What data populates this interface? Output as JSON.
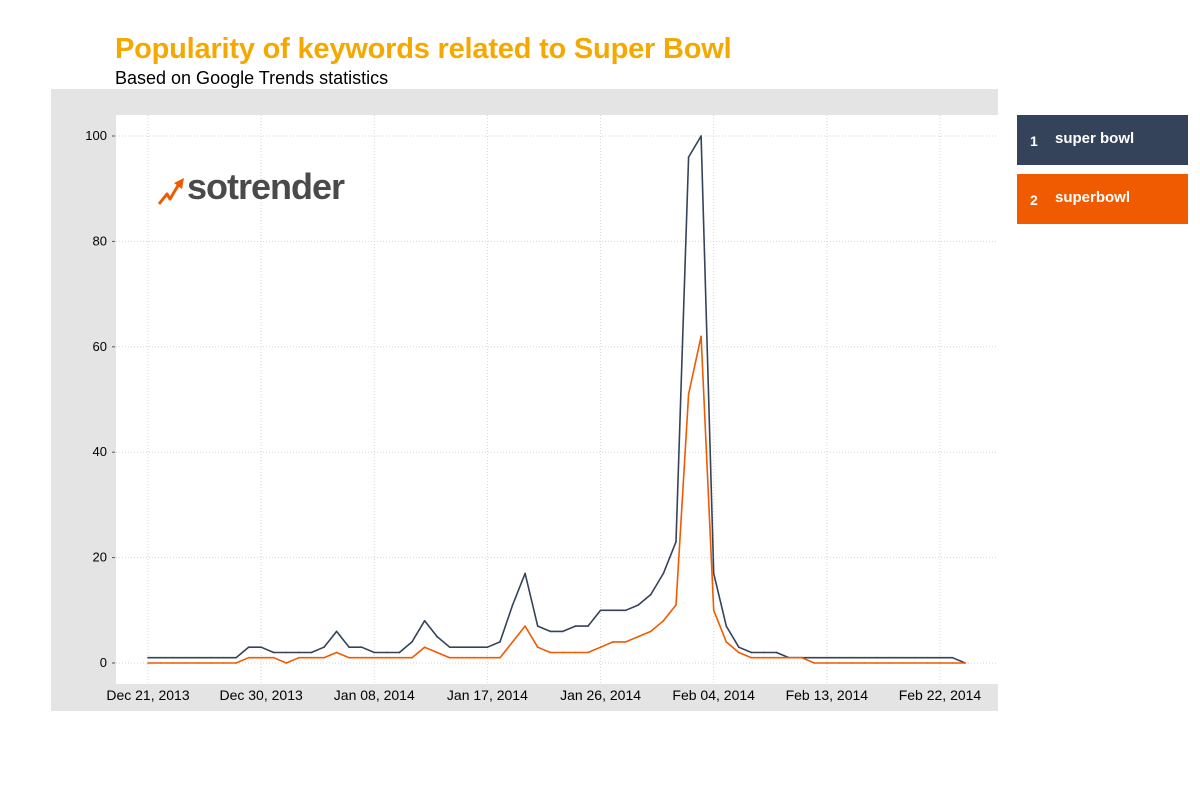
{
  "header": {
    "title": "Popularity of keywords related to Super Bowl",
    "subtitle": "Based on Google Trends statistics"
  },
  "logo": {
    "text": "sotrender",
    "icon": "trend-arrow-icon"
  },
  "legend": [
    {
      "index": "1",
      "label": "super bowl",
      "color": "#34435a"
    },
    {
      "index": "2",
      "label": "superbowl",
      "color": "#f05a00"
    }
  ],
  "chart_data": {
    "type": "line",
    "title": "Popularity of keywords related to Super Bowl",
    "subtitle": "Based on Google Trends statistics",
    "xlabel": "",
    "ylabel": "",
    "ylim": [
      0,
      100
    ],
    "yticks": [
      "0",
      "20",
      "40",
      "60",
      "80",
      "100"
    ],
    "ytick_values": [
      0,
      20,
      40,
      60,
      80,
      100
    ],
    "x_start": "2013-12-21",
    "x_interval": "1 day",
    "xticks": [
      "Dec 21, 2013",
      "Dec 30, 2013",
      "Jan 08, 2014",
      "Jan 17, 2014",
      "Jan 26, 2014",
      "Feb 04, 2014",
      "Feb 13, 2014",
      "Feb 22, 2014"
    ],
    "xtick_day_offsets": [
      0,
      9,
      18,
      27,
      36,
      45,
      54,
      63
    ],
    "grid": true,
    "legend_position": "right",
    "series": [
      {
        "name": "super bowl",
        "color": "#34435a",
        "values": [
          1,
          1,
          1,
          1,
          1,
          1,
          1,
          1,
          3,
          3,
          2,
          2,
          2,
          2,
          3,
          6,
          3,
          3,
          2,
          2,
          2,
          4,
          8,
          5,
          3,
          3,
          3,
          3,
          4,
          11,
          17,
          7,
          6,
          6,
          7,
          7,
          10,
          10,
          10,
          11,
          13,
          17,
          23,
          96,
          100,
          17,
          7,
          3,
          2,
          2,
          2,
          1,
          1,
          1,
          1,
          1,
          1,
          1,
          1,
          1,
          1,
          1,
          1,
          1,
          1,
          0
        ]
      },
      {
        "name": "superbowl",
        "color": "#f05a00",
        "values": [
          0,
          0,
          0,
          0,
          0,
          0,
          0,
          0,
          1,
          1,
          1,
          0,
          1,
          1,
          1,
          2,
          1,
          1,
          1,
          1,
          1,
          1,
          3,
          2,
          1,
          1,
          1,
          1,
          1,
          4,
          7,
          3,
          2,
          2,
          2,
          2,
          3,
          4,
          4,
          5,
          6,
          8,
          11,
          51,
          62,
          10,
          4,
          2,
          1,
          1,
          1,
          1,
          1,
          0,
          0,
          0,
          0,
          0,
          0,
          0,
          0,
          0,
          0,
          0,
          0,
          0
        ]
      }
    ]
  }
}
